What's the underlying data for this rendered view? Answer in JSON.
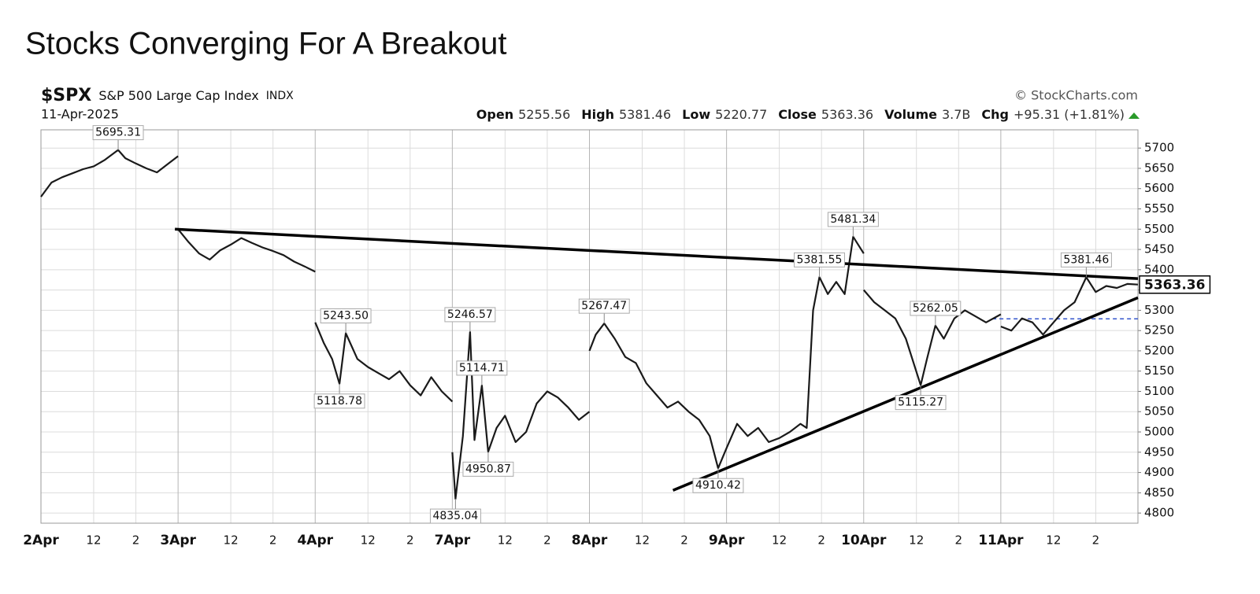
{
  "chart_data": {
    "type": "line",
    "title": "Stocks Converging For A Breakout",
    "header": {
      "symbol": "$SPX",
      "name": "S&P 500 Large Cap Index",
      "exchange": "INDX",
      "date": "11-Apr-2025",
      "source": "© StockCharts.com",
      "quote": [
        {
          "label": "Open",
          "value": 5255.56
        },
        {
          "label": "High",
          "value": 5381.46
        },
        {
          "label": "Low",
          "value": 5220.77
        },
        {
          "label": "Close",
          "value": 5363.36
        },
        {
          "label": "Volume",
          "value": "3.7B"
        },
        {
          "label": "Chg",
          "value": "+95.31 (+1.81%)"
        }
      ]
    },
    "x": [
      0,
      0.5,
      1,
      1.5,
      2,
      2.5,
      3,
      3.66,
      4,
      4.5,
      5,
      5.5,
      6,
      6.5,
      6.5,
      6.5,
      7,
      7.5,
      8,
      8.5,
      9,
      9.5,
      10,
      10.5,
      11,
      11.5,
      12,
      12.5,
      13,
      13,
      13,
      13.4,
      13.8,
      14.15,
      14.45,
      15,
      15.5,
      16,
      16.5,
      17,
      17.5,
      18,
      18.5,
      19,
      19.5,
      19.5,
      19.5,
      19.65,
      20,
      20.34,
      20.55,
      20.9,
      21.2,
      21.6,
      22,
      22.5,
      23,
      23.5,
      24,
      24.5,
      25,
      25.5,
      26,
      26,
      26,
      26.3,
      26.7,
      27.2,
      27.7,
      28.2,
      28.7,
      29.2,
      29.7,
      30.2,
      30.7,
      31.2,
      31.7,
      32.1,
      32.5,
      33,
      33.5,
      34,
      34.5,
      35,
      35.5,
      36,
      36.3,
      36.6,
      36.9,
      37.3,
      37.7,
      38.1,
      38.5,
      39,
      39,
      39,
      39.5,
      40,
      40.5,
      41,
      41.7,
      42,
      42.4,
      42.8,
      43.3,
      43.8,
      44.3,
      44.8,
      45.5,
      45.5,
      45.5,
      46,
      46.5,
      47,
      47.5,
      48,
      48.5,
      49,
      49.55,
      50,
      50.5,
      51,
      51.5,
      52
    ],
    "series": [
      {
        "name": "$SPX",
        "color": "#1a1a1a",
        "values": [
          5580,
          5615,
          5628,
          5638,
          5648,
          5655,
          5670,
          5695.31,
          5675,
          5662,
          5650,
          5640,
          5660,
          5680,
          null,
          5500,
          5468,
          5440,
          5425,
          5448,
          5462,
          5478,
          5466,
          5455,
          5446,
          5436,
          5420,
          5408,
          5395,
          null,
          5270,
          5220,
          5180,
          5118.78,
          5243.5,
          5180,
          5160,
          5145,
          5130,
          5150,
          5115,
          5090,
          5135,
          5100,
          5075,
          null,
          4950,
          4835.04,
          4990,
          5246.57,
          4980,
          5114.71,
          4950.87,
          5010,
          5040,
          4975,
          5000,
          5070,
          5100,
          5085,
          5060,
          5030,
          5050,
          null,
          5200,
          5240,
          5267.47,
          5230,
          5185,
          5170,
          5120,
          5090,
          5060,
          5075,
          5050,
          5030,
          4990,
          4910.42,
          4960,
          5020,
          4990,
          5010,
          4975,
          4985,
          5000,
          5020,
          5010,
          5300,
          5381.55,
          5340,
          5370,
          5340,
          5481.34,
          5440,
          null,
          5350,
          5320,
          5300,
          5280,
          5230,
          5115.27,
          5180,
          5262.05,
          5230,
          5280,
          5300,
          5285,
          5270,
          5290,
          null,
          5260,
          5250,
          5280,
          5270,
          5240,
          5270,
          5300,
          5320,
          5381.46,
          5345,
          5360,
          5355,
          5365,
          5363.36
        ]
      }
    ],
    "annotations": [
      {
        "x": 3.66,
        "value": 5695.31,
        "label": "5695.31"
      },
      {
        "x": 14.45,
        "value": 5243.5,
        "label": "5243.50"
      },
      {
        "x": 14.15,
        "value": 5118.78,
        "label": "5118.78"
      },
      {
        "x": 20.34,
        "value": 5246.57,
        "label": "5246.57"
      },
      {
        "x": 20.9,
        "value": 5114.71,
        "label": "5114.71"
      },
      {
        "x": 21.2,
        "value": 4950.87,
        "label": "4950.87"
      },
      {
        "x": 19.65,
        "value": 4835.04,
        "label": "4835.04"
      },
      {
        "x": 26.7,
        "value": 5267.47,
        "label": "5267.47"
      },
      {
        "x": 32.1,
        "value": 4910.42,
        "label": "4910.42"
      },
      {
        "x": 36.9,
        "value": 5381.55,
        "label": "5381.55"
      },
      {
        "x": 38.5,
        "value": 5481.34,
        "label": "5481.34"
      },
      {
        "x": 42.4,
        "value": 5262.05,
        "label": "5262.05"
      },
      {
        "x": 41.7,
        "value": 5115.27,
        "label": "5115.27"
      },
      {
        "x": 49.55,
        "value": 5381.46,
        "label": "5381.46"
      }
    ],
    "trendlines": [
      {
        "x": [
          6.35,
          52
        ],
        "values": [
          5500,
          5378
        ],
        "color": "#000000"
      },
      {
        "x": [
          29.96,
          52
        ],
        "values": [
          4856,
          5331
        ],
        "color": "#000000"
      }
    ],
    "reference_line": {
      "x": [
        45.1,
        52
      ],
      "values": [
        5279,
        5279
      ],
      "color": "#3355cc"
    },
    "xlim": [
      0,
      52
    ],
    "ylim": [
      4775,
      5745
    ],
    "xticks": [
      {
        "value": 0,
        "label": "2Apr"
      },
      {
        "value": 2.5,
        "label": "12"
      },
      {
        "value": 4.5,
        "label": "2"
      },
      {
        "value": 6.5,
        "label": "3Apr"
      },
      {
        "value": 9,
        "label": "12"
      },
      {
        "value": 11,
        "label": "2"
      },
      {
        "value": 13,
        "label": "4Apr"
      },
      {
        "value": 15.5,
        "label": "12"
      },
      {
        "value": 17.5,
        "label": "2"
      },
      {
        "value": 19.5,
        "label": "7Apr"
      },
      {
        "value": 22,
        "label": "12"
      },
      {
        "value": 24,
        "label": "2"
      },
      {
        "value": 26,
        "label": "8Apr"
      },
      {
        "value": 28.5,
        "label": "12"
      },
      {
        "value": 30.5,
        "label": "2"
      },
      {
        "value": 32.5,
        "label": "9Apr"
      },
      {
        "value": 35,
        "label": "12"
      },
      {
        "value": 37,
        "label": "2"
      },
      {
        "value": 39,
        "label": "10Apr"
      },
      {
        "value": 41.5,
        "label": "12"
      },
      {
        "value": 43.5,
        "label": "2"
      },
      {
        "value": 45.5,
        "label": "11Apr"
      },
      {
        "value": 48,
        "label": "12"
      },
      {
        "value": 50,
        "label": "2"
      }
    ],
    "yticks": [
      4800,
      4850,
      4900,
      4950,
      5000,
      5050,
      5100,
      5150,
      5200,
      5250,
      5300,
      5350,
      5400,
      5450,
      5500,
      5550,
      5600,
      5650,
      5700
    ],
    "grid": true
  }
}
